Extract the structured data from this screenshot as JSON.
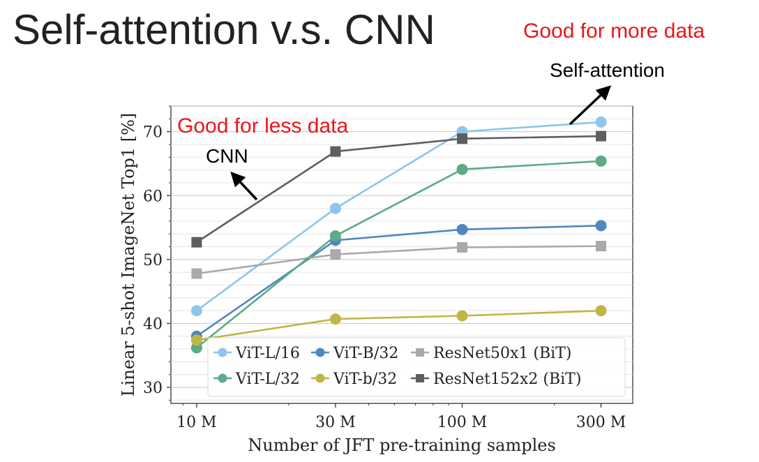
{
  "slide": {
    "title": "Self-attention v.s. CNN",
    "note_more_data": "Good for more data",
    "note_self_attention": "Self-attention",
    "note_less_data": "Good for less data",
    "note_cnn": "CNN"
  },
  "colors": {
    "red": "#e8161b",
    "vit_l16": "#8ec5ea",
    "vit_b32": "#4f87be",
    "resnet50": "#a9a9a9",
    "vit_l32": "#5aab86",
    "vit_b32s": "#c0b643",
    "resnet152": "#5e5e5e"
  },
  "chart_data": {
    "type": "line",
    "title": "",
    "xlabel": "Number of JFT pre-training samples",
    "ylabel": "Linear 5-shot ImageNet Top1 [%]",
    "categories": [
      "10 M",
      "30 M",
      "100 M",
      "300 M"
    ],
    "x": [
      9,
      30,
      90,
      300
    ],
    "xscale": "log",
    "ylim": [
      27.5,
      74
    ],
    "yticks": [
      30,
      40,
      50,
      60,
      70
    ],
    "legend_placement": "lower-right",
    "series": [
      {
        "name": "ViT-L/16",
        "marker": "circle",
        "color": "#8ec5ea",
        "values": [
          42,
          58,
          70,
          71.5
        ]
      },
      {
        "name": "ViT-B/32",
        "marker": "circle",
        "color": "#4f87be",
        "values": [
          38,
          53,
          54.7,
          55.3
        ]
      },
      {
        "name": "ResNet50x1 (BiT)",
        "marker": "square",
        "color": "#a9a9a9",
        "values": [
          47.8,
          50.8,
          51.9,
          52.1
        ]
      },
      {
        "name": "ViT-L/32",
        "marker": "circle",
        "color": "#5aab86",
        "values": [
          36.2,
          53.7,
          64.1,
          65.4
        ]
      },
      {
        "name": "ViT-b/32",
        "marker": "circle",
        "color": "#c0b643",
        "values": [
          37.4,
          40.7,
          41.2,
          42
        ]
      },
      {
        "name": "ResNet152x2 (BiT)",
        "marker": "square",
        "color": "#5e5e5e",
        "values": [
          52.7,
          66.9,
          68.9,
          69.3
        ]
      }
    ]
  }
}
